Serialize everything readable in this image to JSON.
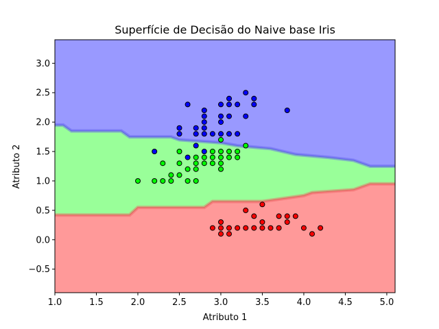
{
  "chart_data": {
    "type": "scatter",
    "title": "Superfície de Decisão do Naive base Iris",
    "xlabel": "Atributo 1",
    "ylabel": "Atributo 2",
    "xlim": [
      1.0,
      5.1
    ],
    "ylim": [
      -0.9,
      3.4
    ],
    "xticks": [
      1.0,
      1.5,
      2.0,
      2.5,
      3.0,
      3.5,
      4.0,
      4.5,
      5.0
    ],
    "xtick_labels": [
      "1.0",
      "1.5",
      "2.0",
      "2.5",
      "3.0",
      "3.5",
      "4.0",
      "4.5",
      "5.0"
    ],
    "yticks": [
      -0.5,
      0.0,
      0.5,
      1.0,
      1.5,
      2.0,
      2.5,
      3.0
    ],
    "ytick_labels": [
      "−0.5",
      "0.0",
      "0.5",
      "1.0",
      "1.5",
      "2.0",
      "2.5",
      "3.0"
    ],
    "grid": false,
    "regions": [
      {
        "class": "blue",
        "color": "#9999ff"
      },
      {
        "class": "green",
        "color": "#99ff99"
      },
      {
        "class": "red",
        "color": "#ff9999"
      }
    ],
    "boundaries": {
      "upper": [
        [
          1.0,
          1.95
        ],
        [
          1.1,
          1.95
        ],
        [
          1.2,
          1.85
        ],
        [
          1.8,
          1.85
        ],
        [
          1.9,
          1.75
        ],
        [
          2.4,
          1.75
        ],
        [
          2.5,
          1.7
        ],
        [
          3.0,
          1.65
        ],
        [
          3.2,
          1.6
        ],
        [
          3.6,
          1.55
        ],
        [
          3.9,
          1.45
        ],
        [
          4.3,
          1.4
        ],
        [
          4.6,
          1.35
        ],
        [
          4.7,
          1.3
        ],
        [
          4.8,
          1.25
        ],
        [
          5.1,
          1.25
        ]
      ],
      "lower": [
        [
          1.0,
          0.42
        ],
        [
          1.9,
          0.42
        ],
        [
          2.0,
          0.55
        ],
        [
          2.8,
          0.55
        ],
        [
          2.9,
          0.65
        ],
        [
          3.5,
          0.65
        ],
        [
          4.0,
          0.75
        ],
        [
          4.1,
          0.8
        ],
        [
          4.6,
          0.85
        ],
        [
          4.8,
          0.95
        ],
        [
          5.1,
          0.95
        ]
      ]
    },
    "series": [
      {
        "class": "blue",
        "color": "#0000ff",
        "points": [
          [
            2.6,
            2.3
          ],
          [
            2.5,
            1.9
          ],
          [
            2.5,
            1.8
          ],
          [
            2.7,
            1.9
          ],
          [
            2.7,
            1.8
          ],
          [
            2.8,
            2.2
          ],
          [
            2.8,
            2.1
          ],
          [
            2.8,
            2.0
          ],
          [
            2.8,
            1.9
          ],
          [
            2.8,
            1.8
          ],
          [
            2.8,
            1.5
          ],
          [
            2.9,
            1.8
          ],
          [
            3.0,
            2.3
          ],
          [
            3.0,
            2.1
          ],
          [
            3.0,
            2.0
          ],
          [
            3.0,
            1.8
          ],
          [
            3.1,
            2.4
          ],
          [
            3.1,
            2.3
          ],
          [
            3.1,
            2.1
          ],
          [
            3.1,
            1.8
          ],
          [
            3.2,
            2.3
          ],
          [
            3.2,
            1.8
          ],
          [
            3.3,
            2.5
          ],
          [
            3.3,
            2.1
          ],
          [
            3.4,
            2.4
          ],
          [
            3.4,
            2.3
          ],
          [
            3.8,
            2.2
          ],
          [
            2.2,
            1.5
          ],
          [
            2.6,
            1.4
          ],
          [
            2.7,
            1.6
          ]
        ]
      },
      {
        "class": "green",
        "color": "#00ff00",
        "points": [
          [
            2.0,
            1.0
          ],
          [
            2.2,
            1.0
          ],
          [
            2.3,
            1.3
          ],
          [
            2.3,
            1.0
          ],
          [
            2.4,
            1.1
          ],
          [
            2.4,
            1.0
          ],
          [
            2.5,
            1.5
          ],
          [
            2.5,
            1.3
          ],
          [
            2.5,
            1.1
          ],
          [
            2.6,
            1.2
          ],
          [
            2.6,
            1.0
          ],
          [
            2.7,
            1.4
          ],
          [
            2.7,
            1.3
          ],
          [
            2.7,
            1.2
          ],
          [
            2.7,
            1.0
          ],
          [
            2.8,
            1.3
          ],
          [
            2.8,
            1.4
          ],
          [
            2.9,
            1.5
          ],
          [
            2.9,
            1.4
          ],
          [
            2.9,
            1.3
          ],
          [
            3.0,
            1.7
          ],
          [
            3.0,
            1.5
          ],
          [
            3.0,
            1.4
          ],
          [
            3.0,
            1.3
          ],
          [
            3.0,
            1.2
          ],
          [
            3.1,
            1.5
          ],
          [
            3.1,
            1.4
          ],
          [
            3.2,
            1.5
          ],
          [
            3.2,
            1.4
          ],
          [
            3.3,
            1.6
          ]
        ]
      },
      {
        "class": "red",
        "color": "#ff0000",
        "points": [
          [
            2.9,
            0.2
          ],
          [
            3.0,
            0.3
          ],
          [
            3.0,
            0.2
          ],
          [
            3.0,
            0.1
          ],
          [
            3.1,
            0.2
          ],
          [
            3.1,
            0.1
          ],
          [
            3.2,
            0.2
          ],
          [
            3.3,
            0.5
          ],
          [
            3.3,
            0.2
          ],
          [
            3.4,
            0.4
          ],
          [
            3.4,
            0.2
          ],
          [
            3.5,
            0.6
          ],
          [
            3.5,
            0.3
          ],
          [
            3.5,
            0.2
          ],
          [
            3.6,
            0.2
          ],
          [
            3.7,
            0.4
          ],
          [
            3.7,
            0.2
          ],
          [
            3.8,
            0.4
          ],
          [
            3.8,
            0.3
          ],
          [
            3.9,
            0.4
          ],
          [
            4.0,
            0.2
          ],
          [
            4.1,
            0.1
          ],
          [
            4.2,
            0.2
          ]
        ]
      }
    ]
  }
}
